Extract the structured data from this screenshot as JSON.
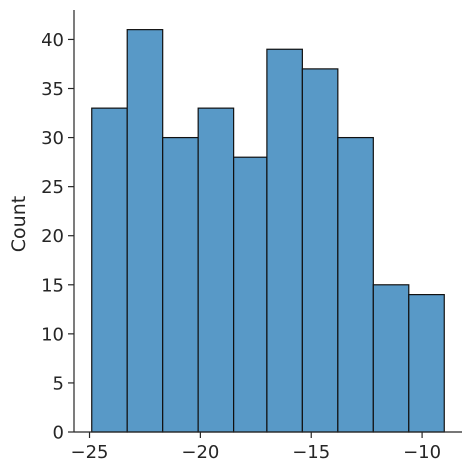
{
  "chart_data": {
    "type": "bar",
    "title": "",
    "xlabel": "",
    "ylabel": "Count",
    "bins": [
      {
        "x0": -24.9,
        "x1": -23.3,
        "count": 33
      },
      {
        "x0": -23.3,
        "x1": -21.7,
        "count": 41
      },
      {
        "x0": -21.7,
        "x1": -20.1,
        "count": 30
      },
      {
        "x0": -20.1,
        "x1": -18.5,
        "count": 33
      },
      {
        "x0": -18.5,
        "x1": -17.0,
        "count": 28
      },
      {
        "x0": -17.0,
        "x1": -15.4,
        "count": 39
      },
      {
        "x0": -15.4,
        "x1": -13.8,
        "count": 37
      },
      {
        "x0": -13.8,
        "x1": -12.2,
        "count": 30
      },
      {
        "x0": -12.2,
        "x1": -10.6,
        "count": 15
      },
      {
        "x0": -10.6,
        "x1": -9.0,
        "count": 14
      }
    ],
    "xlim": [
      -25.7,
      -8.2
    ],
    "ylim": [
      0,
      43
    ],
    "xticks": [
      -25,
      -20,
      -15,
      -10
    ],
    "xtick_labels": [
      "−25",
      "−20",
      "−15",
      "−10"
    ],
    "yticks": [
      0,
      5,
      10,
      15,
      20,
      25,
      30,
      35,
      40
    ],
    "ytick_labels": [
      "0",
      "5",
      "10",
      "15",
      "20",
      "25",
      "30",
      "35",
      "40"
    ],
    "grid": false,
    "bar_color": "#5899c7",
    "edge_color": "#111111"
  }
}
